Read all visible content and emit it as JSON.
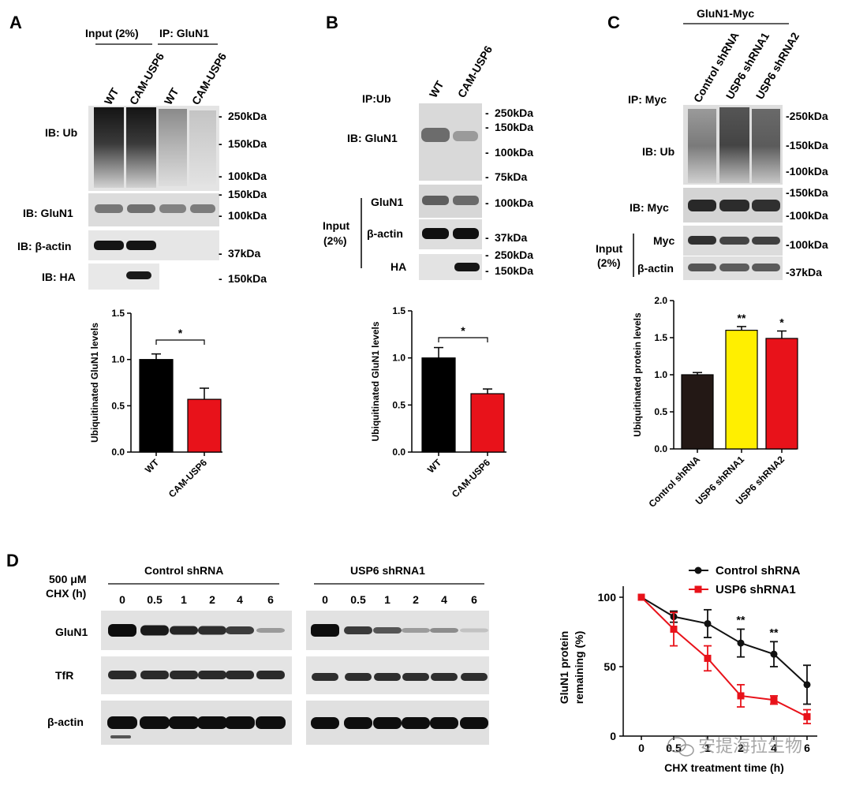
{
  "panels": {
    "A": {
      "letter": "A",
      "group_labels": [
        "Input (2%)",
        "IP: GluN1"
      ],
      "lane_labels": [
        "WT",
        "CAM-USP6",
        "WT",
        "CAM-USP6"
      ],
      "blot_labels": [
        "IB: Ub",
        "IB: GluN1",
        "IB: β-actin",
        "IB: HA"
      ],
      "markers": [
        "250kDa",
        "150kDa",
        "100kDa",
        "150kDa",
        "100kDa",
        "37kDa",
        "150kDa"
      ],
      "marker_dashes": [
        "-",
        "-",
        "-",
        "-",
        "-",
        "-",
        "-"
      ]
    },
    "B": {
      "letter": "B",
      "lane_labels": [
        "WT",
        "CAM-USP6"
      ],
      "ip_label": "IP:Ub",
      "blot_labels": [
        "IB: GluN1",
        "GluN1",
        "β-actin",
        "HA"
      ],
      "input_label": [
        "Input",
        "(2%)"
      ],
      "markers": [
        "250kDa",
        "150kDa",
        "100kDa",
        "75kDa",
        "100kDa",
        "37kDa",
        "250kDa",
        "150kDa"
      ],
      "marker_dashes": [
        "-",
        "-",
        "-",
        "-",
        "-",
        "-",
        "-",
        "-"
      ]
    },
    "C": {
      "letter": "C",
      "group_label": "GluN1-Myc",
      "lane_labels": [
        "Control shRNA",
        "USP6 shRNA1",
        "USP6 shRNA2"
      ],
      "ip_label": "IP: Myc",
      "blot_labels": [
        "IB: Ub",
        "IB: Myc",
        "Myc",
        "β-actin"
      ],
      "input_label": [
        "Input",
        "(2%)"
      ],
      "markers": [
        "-250kDa",
        "-150kDa",
        "-100kDa",
        "-150kDa",
        "-100kDa",
        "-100kDa",
        "-37kDa"
      ]
    },
    "D": {
      "letter": "D",
      "treatment_label": [
        "500 μM",
        "CHX (h)"
      ],
      "group_labels": [
        "Control shRNA",
        "USP6 shRNA1"
      ],
      "time_points": [
        "0",
        "0.5",
        "1",
        "2",
        "4",
        "6"
      ],
      "blot_labels": [
        "GluN1",
        "TfR",
        "β-actin"
      ]
    }
  },
  "watermark": "安提海拉生物",
  "chart_data": [
    {
      "panel": "A",
      "type": "bar",
      "categories": [
        "WT",
        "CAM-USP6"
      ],
      "values": [
        1.0,
        0.57
      ],
      "errors": [
        0.06,
        0.12
      ],
      "colors": [
        "#000000",
        "#e8121a"
      ],
      "ylabel": "Ubiquitinated GluN1 levels",
      "ylim": [
        0,
        1.5
      ],
      "yticks": [
        "0.0",
        "0.5",
        "1.0",
        "1.5"
      ],
      "significance": [
        {
          "label": "*",
          "between": [
            0,
            1
          ]
        }
      ]
    },
    {
      "panel": "B",
      "type": "bar",
      "categories": [
        "WT",
        "CAM-USP6"
      ],
      "values": [
        1.0,
        0.62
      ],
      "errors": [
        0.11,
        0.05
      ],
      "colors": [
        "#000000",
        "#e8121a"
      ],
      "ylabel": "Ubiquitinated GluN1 levels",
      "ylim": [
        0,
        1.5
      ],
      "yticks": [
        "0.0",
        "0.5",
        "1.0",
        "1.5"
      ],
      "significance": [
        {
          "label": "*",
          "between": [
            0,
            1
          ]
        }
      ]
    },
    {
      "panel": "C",
      "type": "bar",
      "categories": [
        "Control shRNA",
        "USP6 shRNA1",
        "USP6 shRNA2"
      ],
      "values": [
        1.0,
        1.6,
        1.49
      ],
      "errors": [
        0.03,
        0.05,
        0.1
      ],
      "colors": [
        "#231815",
        "#ffef00",
        "#e8121a"
      ],
      "ylabel": "Ubiquitinated protein levels",
      "ylim": [
        0,
        2.0
      ],
      "yticks": [
        "0.0",
        "0.5",
        "1.0",
        "1.5",
        "2.0"
      ],
      "bar_annotations": [
        "",
        "**",
        "*"
      ]
    },
    {
      "panel": "D",
      "type": "line",
      "x": [
        0,
        0.5,
        1,
        2,
        4,
        6
      ],
      "xticks": [
        "0",
        "0.5",
        "1",
        "2",
        "4",
        "6"
      ],
      "series": [
        {
          "name": "Control shRNA",
          "color": "#111111",
          "marker": "circle",
          "values": [
            100,
            86,
            81,
            67,
            59,
            37
          ],
          "errors": [
            0,
            4,
            10,
            10,
            9,
            14
          ]
        },
        {
          "name": "USP6 shRNA1",
          "color": "#e8121a",
          "marker": "square",
          "values": [
            100,
            77,
            56,
            29,
            26,
            14
          ],
          "errors": [
            0,
            12,
            9,
            8,
            3,
            5
          ]
        }
      ],
      "ylabel": [
        "GluN1 protein",
        "remaining (%)"
      ],
      "xlabel": "CHX treatment time (h)",
      "ylim": [
        0,
        100
      ],
      "yticks": [
        "0",
        "50",
        "100"
      ],
      "point_annotations": [
        {
          "x_index": 3,
          "label": "**"
        },
        {
          "x_index": 4,
          "label": "**"
        }
      ],
      "legend_position": "top-right"
    }
  ]
}
